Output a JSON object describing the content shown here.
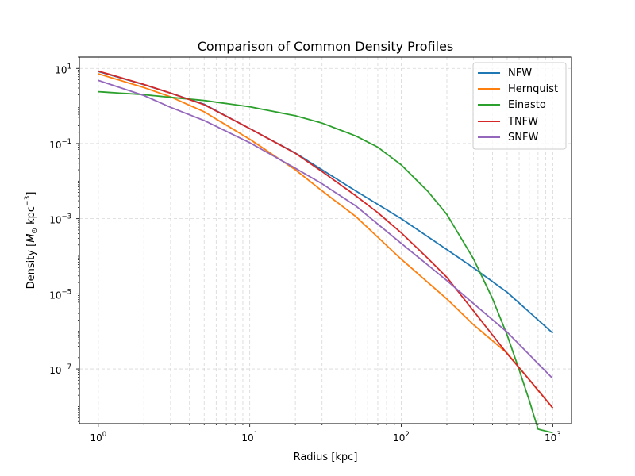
{
  "chart_data": {
    "type": "line",
    "title": "Comparison of Common Density Profiles",
    "xlabel": "Radius [kpc]",
    "ylabel": {
      "prefix": "Density [",
      "symbol": "M",
      "subscript": "⊙",
      "unit": " kpc",
      "exponent": "−3",
      "suffix": "]"
    },
    "x_scale": "log",
    "y_scale": "log",
    "xlim": [
      0.75,
      1330
    ],
    "ylim": [
      3.5e-09,
      20
    ],
    "grid": true,
    "legend_position": "top-right",
    "x_ticks": [
      {
        "value": 1,
        "base": "10",
        "exp": "0"
      },
      {
        "value": 10,
        "base": "10",
        "exp": "1"
      },
      {
        "value": 100,
        "base": "10",
        "exp": "2"
      },
      {
        "value": 1000,
        "base": "10",
        "exp": "3"
      }
    ],
    "y_ticks": [
      {
        "value": 10,
        "base": "10",
        "exp": "1"
      },
      {
        "value": 0.1,
        "base": "10",
        "exp": "−1"
      },
      {
        "value": 0.001,
        "base": "10",
        "exp": "−3"
      },
      {
        "value": 1e-05,
        "base": "10",
        "exp": "−5"
      },
      {
        "value": 1e-07,
        "base": "10",
        "exp": "−7"
      }
    ],
    "series": [
      {
        "name": "NFW",
        "color": "#1f77b4",
        "x": [
          1,
          2,
          3,
          5,
          10,
          20,
          30,
          50,
          100,
          200,
          300,
          500,
          1000
        ],
        "y": [
          8.26,
          3.7,
          2.2,
          1.11,
          0.25,
          0.056,
          0.02,
          0.0055,
          0.001,
          0.00015,
          4.91e-05,
          1.1e-05,
          9e-07
        ]
      },
      {
        "name": "Hernquist",
        "color": "#ff7f0e",
        "x": [
          1,
          2,
          3,
          5,
          10,
          20,
          30,
          50,
          100,
          200,
          300,
          500,
          1000
        ],
        "y": [
          7.2,
          3.1,
          1.75,
          0.7,
          0.13,
          0.02,
          0.0055,
          0.00115,
          8.35e-05,
          7.3e-06,
          1.5e-06,
          2.64e-07,
          9.1e-09
        ]
      },
      {
        "name": "Einasto",
        "color": "#2ca02c",
        "x": [
          1,
          2,
          3,
          5,
          10,
          20,
          30,
          50,
          70,
          100,
          150,
          200,
          300,
          400,
          500,
          600,
          700,
          800,
          1000
        ],
        "y": [
          2.4,
          2.0,
          1.7,
          1.4,
          0.95,
          0.55,
          0.35,
          0.16,
          0.08,
          0.027,
          0.0053,
          0.0013,
          8.5e-05,
          7.5e-06,
          8e-07,
          9.5e-08,
          1.45e-08,
          2.5e-09,
          2e-09
        ]
      },
      {
        "name": "TNFW",
        "color": "#d62728",
        "x": [
          1,
          2,
          3,
          5,
          10,
          20,
          30,
          50,
          70,
          100,
          150,
          200,
          300,
          500,
          700,
          1000
        ],
        "y": [
          8.5,
          3.75,
          2.2,
          1.08,
          0.25,
          0.055,
          0.018,
          0.0041,
          0.00145,
          0.00042,
          8.75e-05,
          2.75e-05,
          3.5e-06,
          2.55e-07,
          5.2e-08,
          9.2e-09
        ]
      },
      {
        "name": "SNFW",
        "color": "#9467bd",
        "x": [
          1,
          2,
          3,
          5,
          10,
          20,
          30,
          50,
          100,
          200,
          300,
          500,
          1000
        ],
        "y": [
          4.8,
          1.9,
          0.92,
          0.41,
          0.105,
          0.022,
          0.0085,
          0.0022,
          0.00022,
          2.25e-05,
          5.5e-06,
          9.55e-07,
          5.55e-08
        ]
      }
    ]
  }
}
